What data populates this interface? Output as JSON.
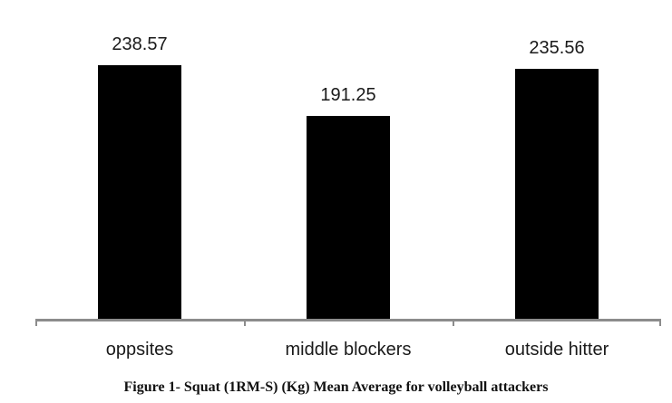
{
  "figure": {
    "caption": "Figure 1- Squat (1RM-S) (Kg) Mean Average for volleyball attackers"
  },
  "chart_data": {
    "type": "bar",
    "categories": [
      "oppsites",
      "middle blockers",
      "outside hitter"
    ],
    "values": [
      238.57,
      191.25,
      235.56
    ],
    "data_labels": [
      "238.57",
      "191.25",
      "235.56"
    ],
    "title": "",
    "xlabel": "",
    "ylabel": "",
    "ylim": [
      0,
      300
    ],
    "grid": false,
    "legend": false,
    "bar_color": "#000000",
    "axis_color": "#8c8c8c",
    "text_color": "#1a1a1a"
  }
}
